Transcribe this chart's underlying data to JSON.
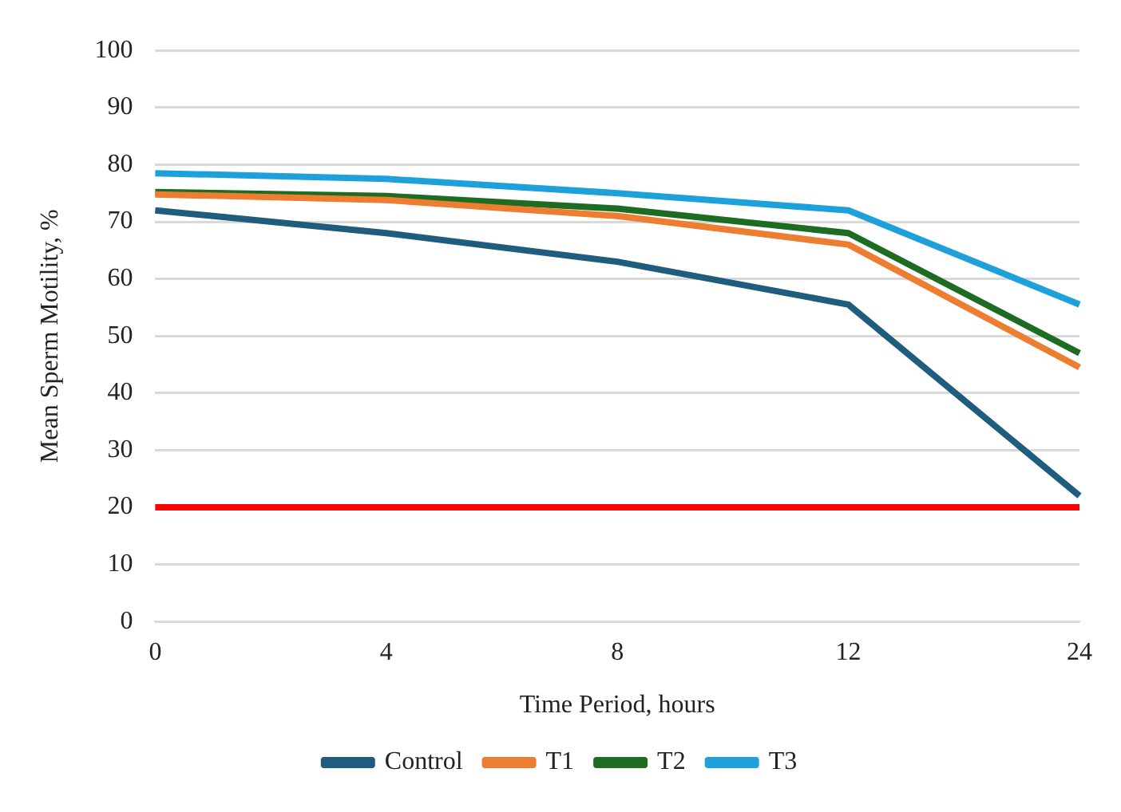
{
  "chart_data": {
    "type": "line",
    "xlabel": "Time Period, hours",
    "ylabel": "Mean Sperm Motility, %",
    "categories": [
      "0",
      "4",
      "8",
      "12",
      "24"
    ],
    "series": [
      {
        "name": "Control",
        "color": "#1f5c7e",
        "values": [
          72,
          68,
          63,
          55.5,
          22
        ]
      },
      {
        "name": "T1",
        "color": "#ed7d31",
        "values": [
          74.8,
          73.8,
          71,
          66,
          44.5
        ]
      },
      {
        "name": "T2",
        "color": "#1e6b22",
        "values": [
          75.2,
          74.5,
          72.3,
          68,
          47
        ]
      },
      {
        "name": "T3",
        "color": "#1ea1db",
        "values": [
          78.5,
          77.5,
          75,
          72,
          55.5
        ]
      }
    ],
    "ylim": [
      0,
      100
    ],
    "yticks": [
      0,
      10,
      20,
      30,
      40,
      50,
      60,
      70,
      80,
      90,
      100
    ],
    "ref_lines": [
      {
        "axis": "y",
        "value": 20,
        "color": "#ff0000"
      }
    ],
    "grid": "y",
    "legend": "bottom",
    "marker": "none",
    "line_style": "solid"
  }
}
